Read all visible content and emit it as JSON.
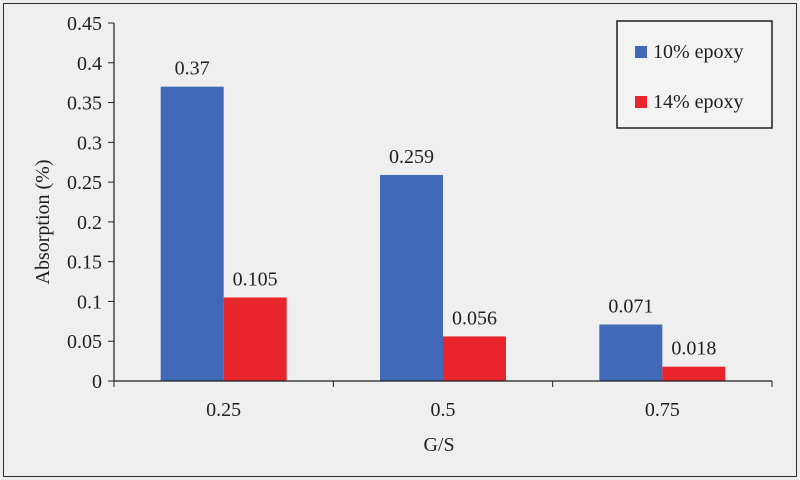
{
  "chart_data": {
    "type": "bar",
    "categories": [
      "0.25",
      "0.5",
      "0.75"
    ],
    "series": [
      {
        "name": "10% epoxy",
        "color": "#4169b8",
        "values": [
          0.37,
          0.259,
          0.071
        ],
        "labels": [
          "0.37",
          "0.259",
          "0.071"
        ]
      },
      {
        "name": "14% epoxy",
        "color": "#e8252a",
        "values": [
          0.105,
          0.056,
          0.018
        ],
        "labels": [
          "0.105",
          "0.056",
          "0.018"
        ]
      }
    ],
    "xlabel": "G/S",
    "ylabel": "Absorption (%)",
    "ylim": [
      0,
      0.45
    ],
    "yticks": [
      0,
      0.05,
      0.1,
      0.15,
      0.2,
      0.25,
      0.3,
      0.35,
      0.4,
      0.45
    ],
    "ytick_labels": [
      "0",
      "0.05",
      "0.1",
      "0.15",
      "0.2",
      "0.25",
      "0.3",
      "0.35",
      "0.4",
      "0.45"
    ],
    "grid": false,
    "legend_position": "top-right"
  }
}
